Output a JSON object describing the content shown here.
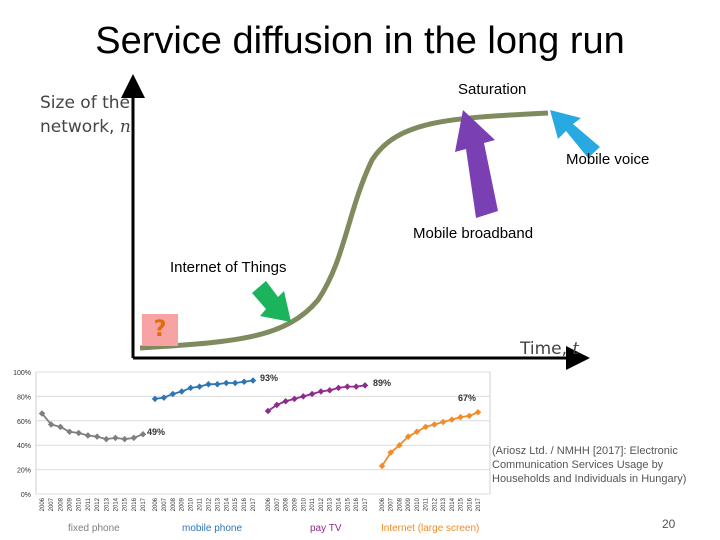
{
  "title": "Service diffusion in the long run",
  "diagram": {
    "y_axis_label_line1": "Size of the",
    "y_axis_label_line2": "network, ",
    "y_axis_var": "n",
    "x_axis_label": "Time, ",
    "x_axis_var": "t",
    "labels": {
      "saturation": "Saturation",
      "mobile_voice": "Mobile voice",
      "mobile_broadband": "Mobile broadband",
      "iot": "Internet of Things"
    },
    "question_mark": "?",
    "colors": {
      "curve": "#7f8b5e",
      "purple_arrow": "#7b3fb4",
      "blue_arrow": "#29a9e1",
      "green_arrow": "#1bb35c"
    }
  },
  "chart_data": {
    "type": "line",
    "y_ticks": [
      "100%",
      "80%",
      "60%",
      "40%",
      "20%",
      "0%"
    ],
    "ylim": [
      0,
      100
    ],
    "x_tick_labels": [
      "2006",
      "2007",
      "2008",
      "2009",
      "2010",
      "2011",
      "2012",
      "2013",
      "2014",
      "2015",
      "2016",
      "2017"
    ],
    "series": [
      {
        "name": "fixed phone",
        "color": "#7f7f7f",
        "values": [
          66,
          57,
          55,
          51,
          50,
          48,
          47,
          45,
          46,
          45,
          46,
          49
        ],
        "end_label": "49%"
      },
      {
        "name": "mobile phone",
        "color": "#2e75b6",
        "values": [
          78,
          79,
          82,
          84,
          87,
          88,
          90,
          90,
          91,
          91,
          92,
          93
        ],
        "end_label": "93%"
      },
      {
        "name": "pay TV",
        "color": "#8e2c8e",
        "values": [
          68,
          73,
          76,
          78,
          80,
          82,
          84,
          85,
          87,
          88,
          88,
          89
        ],
        "end_label": "89%"
      },
      {
        "name": "Internet (large screen)",
        "color": "#f28c28",
        "values": [
          23,
          34,
          40,
          47,
          51,
          55,
          57,
          59,
          61,
          63,
          64,
          67
        ],
        "end_label": "67%"
      }
    ]
  },
  "source": "(Ariosz Ltd. / NMHH [2017]: Electronic Communication Services Usage by Households and Individuals in Hungary)",
  "page_number": "20"
}
